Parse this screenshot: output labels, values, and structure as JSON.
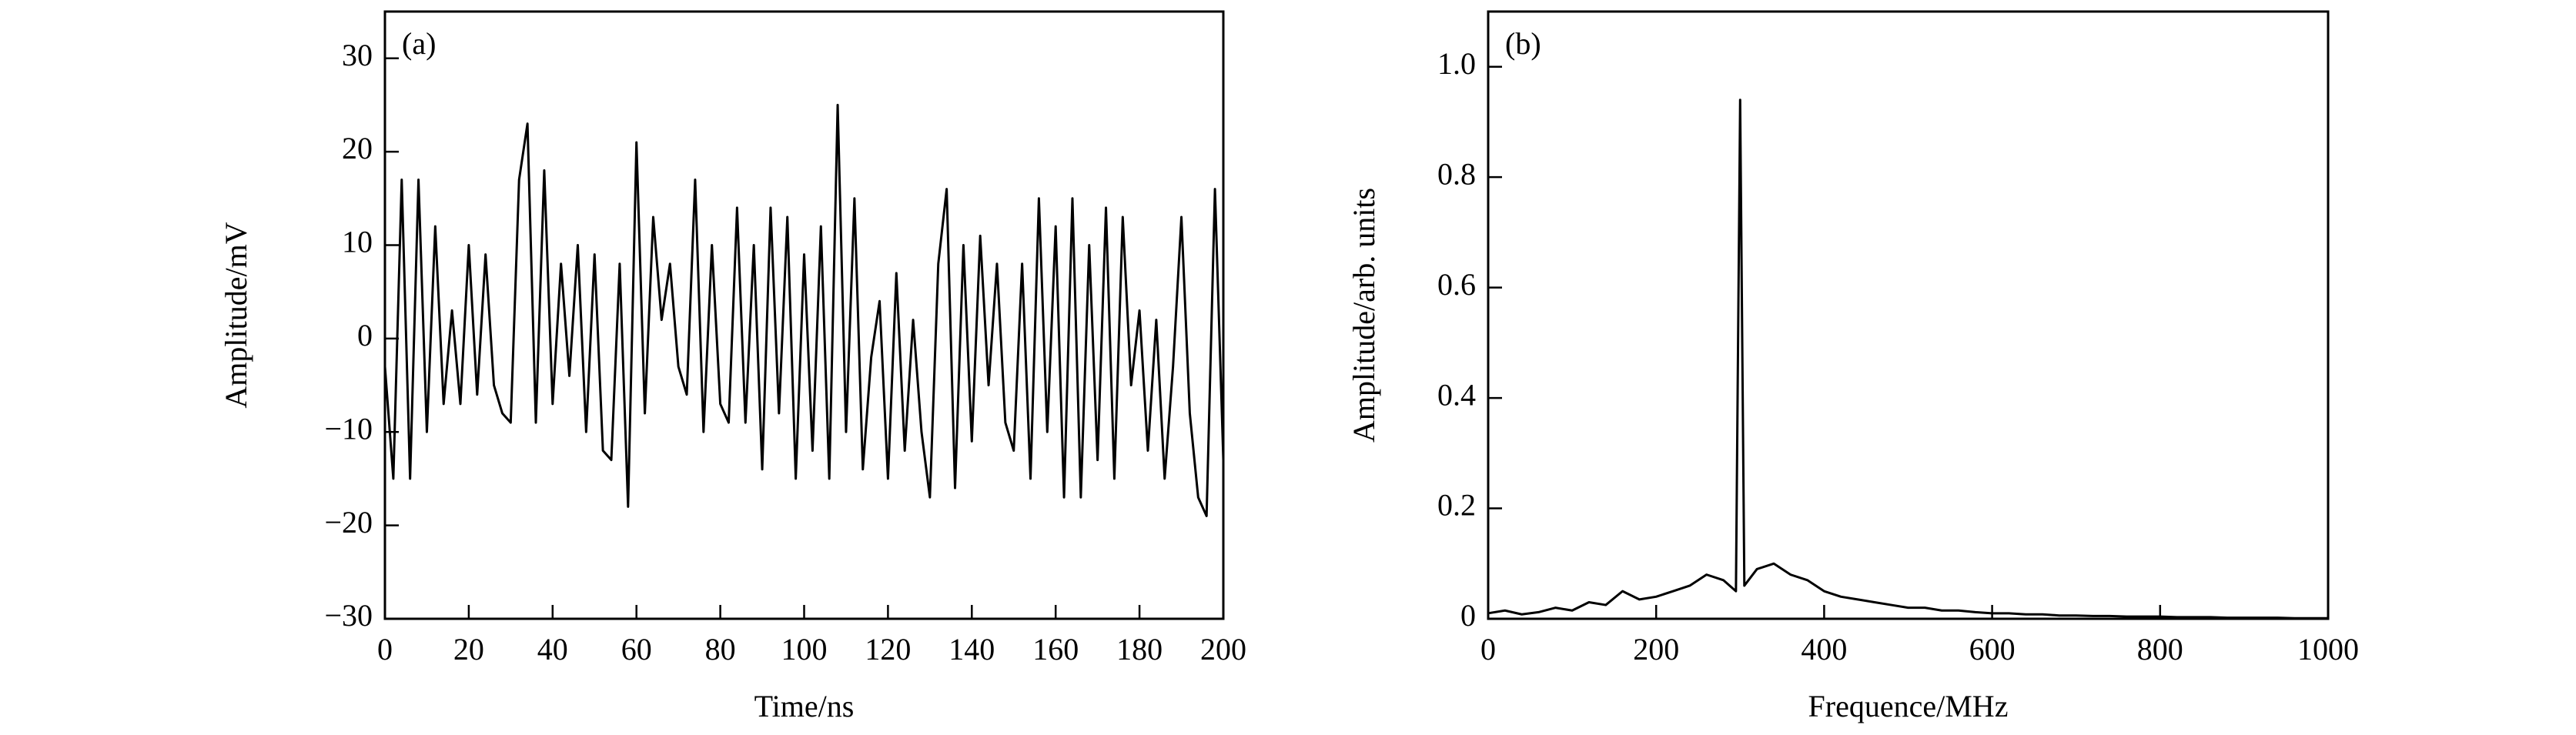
{
  "chart_data": [
    {
      "type": "line",
      "annotation": "(a)",
      "x_label": "Time/ns",
      "y_label": "Amplitude/mV",
      "color": "#000000",
      "x": [
        0,
        2,
        4,
        6,
        8,
        10,
        12,
        14,
        16,
        18,
        20,
        22,
        24,
        26,
        28,
        30,
        32,
        34,
        36,
        38,
        40,
        42,
        44,
        46,
        48,
        50,
        52,
        54,
        56,
        58,
        60,
        62,
        64,
        66,
        68,
        70,
        72,
        74,
        76,
        78,
        80,
        82,
        84,
        86,
        88,
        90,
        92,
        94,
        96,
        98,
        100,
        102,
        104,
        106,
        108,
        110,
        112,
        114,
        116,
        118,
        120,
        122,
        124,
        126,
        128,
        130,
        132,
        134,
        136,
        138,
        140,
        142,
        144,
        146,
        148,
        150,
        152,
        154,
        156,
        158,
        160,
        162,
        164,
        166,
        168,
        170,
        172,
        174,
        176,
        178,
        180,
        182,
        184,
        186,
        188,
        190,
        192,
        194,
        196,
        198,
        200
      ],
      "values": [
        -3,
        -15,
        17,
        -15,
        17,
        -10,
        12,
        -7,
        3,
        -7,
        10,
        -6,
        9,
        -5,
        -8,
        -9,
        17,
        23,
        -9,
        18,
        -7,
        8,
        -4,
        10,
        -10,
        9,
        -12,
        -13,
        8,
        -18,
        21,
        -8,
        13,
        2,
        8,
        -3,
        -6,
        17,
        -10,
        10,
        -7,
        -9,
        14,
        -9,
        10,
        -14,
        14,
        -8,
        13,
        -15,
        9,
        -12,
        12,
        -15,
        25,
        -10,
        15,
        -14,
        -2,
        4,
        -15,
        7,
        -12,
        2,
        -10,
        -17,
        8,
        16,
        -16,
        10,
        -11,
        11,
        -5,
        8,
        -9,
        -12,
        8,
        -15,
        15,
        -10,
        12,
        -17,
        15,
        -17,
        10,
        -13,
        14,
        -15,
        13,
        -5,
        3,
        -12,
        2,
        -15,
        -3,
        13,
        -8,
        -17,
        -19,
        16,
        -13
      ],
      "xlim": [
        0,
        200
      ],
      "ylim": [
        -30,
        35
      ],
      "xticks": [
        0,
        20,
        40,
        60,
        80,
        100,
        120,
        140,
        160,
        180,
        200
      ],
      "yticks": [
        {
          "value": -30,
          "label": "−30"
        },
        {
          "value": -20,
          "label": "−20"
        },
        {
          "value": -10,
          "label": "−10"
        },
        0,
        10,
        20,
        30
      ]
    },
    {
      "type": "line",
      "annotation": "(b)",
      "x_label": "Frequence/MHz",
      "y_label": "Amplitude/arb. units",
      "color": "#000000",
      "x": [
        0,
        20,
        40,
        60,
        80,
        100,
        120,
        140,
        160,
        180,
        200,
        220,
        240,
        260,
        280,
        295,
        300,
        305,
        320,
        340,
        360,
        380,
        400,
        420,
        440,
        460,
        480,
        500,
        520,
        540,
        560,
        580,
        600,
        620,
        640,
        660,
        680,
        700,
        720,
        740,
        760,
        780,
        800,
        820,
        840,
        860,
        880,
        900,
        920,
        940,
        960,
        980,
        1000
      ],
      "values": [
        0.01,
        0.015,
        0.008,
        0.012,
        0.02,
        0.015,
        0.03,
        0.025,
        0.05,
        0.035,
        0.04,
        0.05,
        0.06,
        0.08,
        0.07,
        0.05,
        0.94,
        0.06,
        0.09,
        0.1,
        0.08,
        0.07,
        0.05,
        0.04,
        0.035,
        0.03,
        0.025,
        0.02,
        0.02,
        0.015,
        0.015,
        0.012,
        0.01,
        0.01,
        0.008,
        0.008,
        0.006,
        0.006,
        0.005,
        0.005,
        0.004,
        0.004,
        0.004,
        0.003,
        0.003,
        0.003,
        0.002,
        0.002,
        0.002,
        0.002,
        0.001,
        0.001,
        0.001
      ],
      "xlim": [
        0,
        1000
      ],
      "ylim": [
        0,
        1.1
      ],
      "xticks": [
        0,
        200,
        400,
        600,
        800,
        1000
      ],
      "yticks": [
        0,
        0.2,
        0.4,
        0.6,
        0.8,
        {
          "value": 1,
          "label": "1.0"
        }
      ]
    }
  ]
}
